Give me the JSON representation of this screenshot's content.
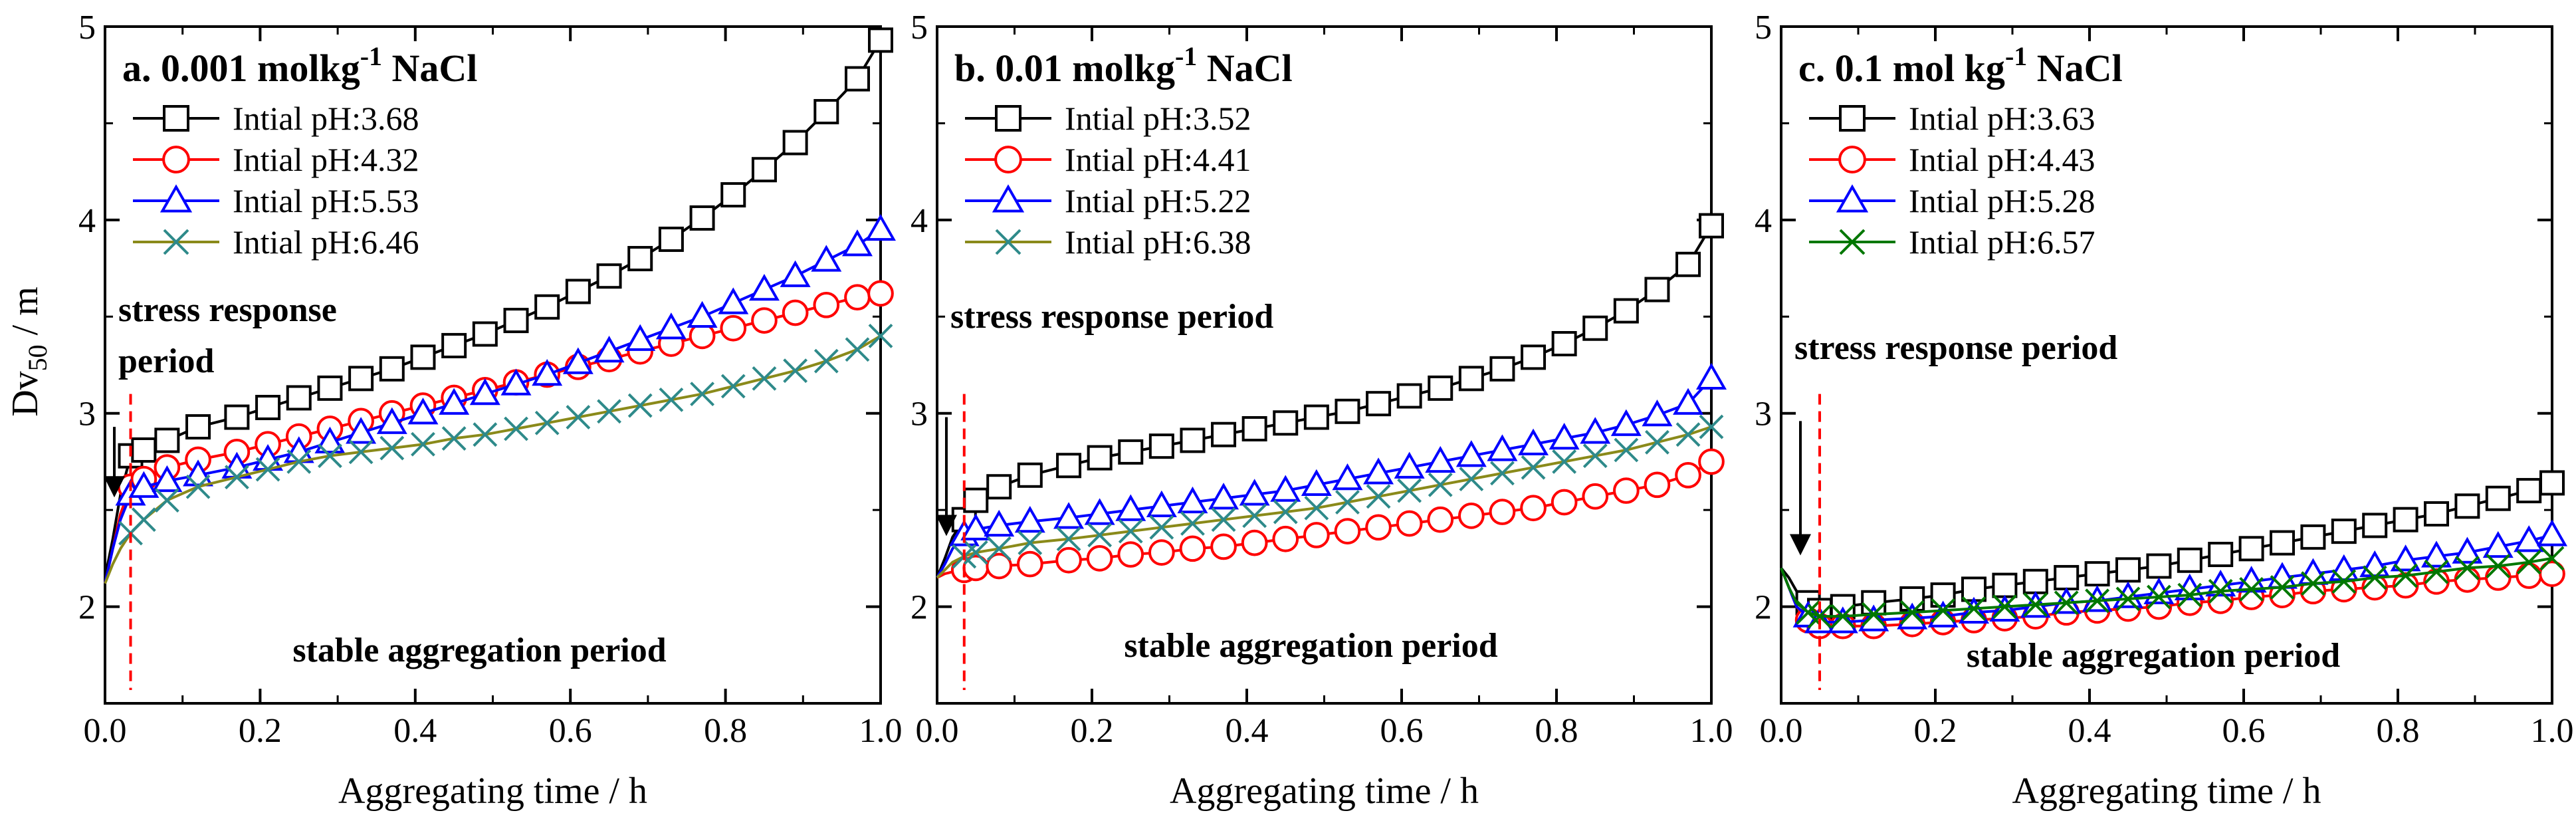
{
  "chart_data": [
    {
      "type": "line",
      "title_prefix": "a.",
      "title_value": "0.001 mol",
      "title_unit_base": "kg",
      "title_unit_exp": "-1",
      "title_salt": "NaCl",
      "xlabel": "Aggregating time / h",
      "ylabel_base": "Dv",
      "ylabel_sub": "50",
      "ylabel_unit": "/  m",
      "xlim": [
        0,
        1.0
      ],
      "ylim": [
        1.5,
        5
      ],
      "x_ticks": [
        "0.0",
        "0.2",
        "0.4",
        "0.6",
        "0.8",
        "1.0"
      ],
      "y_ticks": [
        "2",
        "3",
        "4",
        "5"
      ],
      "annotation_top": [
        "stress response",
        "period"
      ],
      "annotation_bottom": "stable aggregation period",
      "transition_x": 0.033,
      "arrow_x": 0.012,
      "arrow_y": [
        2.93,
        2.62
      ],
      "series": [
        {
          "name": "Intial pH:3.68",
          "color": "#000000",
          "marker": "square",
          "x": [
            0,
            0.01,
            0.02,
            0.033,
            0.05,
            0.08,
            0.12,
            0.17,
            0.21,
            0.25,
            0.29,
            0.33,
            0.37,
            0.41,
            0.45,
            0.49,
            0.53,
            0.57,
            0.61,
            0.65,
            0.69,
            0.73,
            0.77,
            0.81,
            0.85,
            0.89,
            0.93,
            0.97,
            1.0
          ],
          "y": [
            2.15,
            2.35,
            2.58,
            2.78,
            2.81,
            2.86,
            2.93,
            2.98,
            3.03,
            3.08,
            3.13,
            3.18,
            3.23,
            3.29,
            3.35,
            3.41,
            3.48,
            3.55,
            3.63,
            3.71,
            3.8,
            3.9,
            4.01,
            4.13,
            4.26,
            4.4,
            4.56,
            4.73,
            4.93
          ]
        },
        {
          "name": "Intial pH:4.32",
          "color": "#ff0000",
          "marker": "circle",
          "x": [
            0,
            0.01,
            0.02,
            0.033,
            0.05,
            0.08,
            0.12,
            0.17,
            0.21,
            0.25,
            0.29,
            0.33,
            0.37,
            0.41,
            0.45,
            0.49,
            0.53,
            0.57,
            0.61,
            0.65,
            0.69,
            0.73,
            0.77,
            0.81,
            0.85,
            0.89,
            0.93,
            0.97,
            1.0
          ],
          "y": [
            2.12,
            2.3,
            2.48,
            2.62,
            2.66,
            2.72,
            2.76,
            2.8,
            2.84,
            2.88,
            2.92,
            2.96,
            3.0,
            3.04,
            3.08,
            3.12,
            3.16,
            3.2,
            3.24,
            3.28,
            3.32,
            3.36,
            3.4,
            3.44,
            3.48,
            3.52,
            3.56,
            3.6,
            3.62
          ]
        },
        {
          "name": "Intial pH:5.53",
          "color": "#0000ff",
          "marker": "triangle",
          "x": [
            0,
            0.01,
            0.02,
            0.033,
            0.05,
            0.08,
            0.12,
            0.17,
            0.21,
            0.25,
            0.29,
            0.33,
            0.37,
            0.41,
            0.45,
            0.49,
            0.53,
            0.57,
            0.61,
            0.65,
            0.69,
            0.73,
            0.77,
            0.81,
            0.85,
            0.89,
            0.93,
            0.97,
            1.0
          ],
          "y": [
            2.12,
            2.3,
            2.45,
            2.58,
            2.62,
            2.65,
            2.68,
            2.72,
            2.76,
            2.8,
            2.85,
            2.9,
            2.95,
            3.0,
            3.05,
            3.1,
            3.15,
            3.2,
            3.26,
            3.32,
            3.38,
            3.44,
            3.5,
            3.57,
            3.64,
            3.71,
            3.79,
            3.87,
            3.95
          ]
        },
        {
          "name": "Intial pH:6.46",
          "color": "#8a8a1a",
          "marker": "cross",
          "marker_color": "#2e8a8a",
          "x": [
            0,
            0.01,
            0.02,
            0.033,
            0.05,
            0.08,
            0.12,
            0.17,
            0.21,
            0.25,
            0.29,
            0.33,
            0.37,
            0.41,
            0.45,
            0.49,
            0.53,
            0.57,
            0.61,
            0.65,
            0.69,
            0.73,
            0.77,
            0.81,
            0.85,
            0.89,
            0.93,
            0.97,
            1.0
          ],
          "y": [
            2.12,
            2.22,
            2.3,
            2.38,
            2.45,
            2.55,
            2.62,
            2.67,
            2.71,
            2.75,
            2.78,
            2.8,
            2.82,
            2.84,
            2.87,
            2.89,
            2.92,
            2.95,
            2.98,
            3.01,
            3.04,
            3.07,
            3.1,
            3.14,
            3.18,
            3.22,
            3.27,
            3.33,
            3.4
          ]
        }
      ]
    },
    {
      "type": "line",
      "title_prefix": "b.",
      "title_value": "0.01 mol",
      "title_unit_base": "kg",
      "title_unit_exp": "-1",
      "title_salt": "NaCl",
      "xlabel": "Aggregating time / h",
      "xlim": [
        0,
        1.0
      ],
      "ylim": [
        1.5,
        5
      ],
      "x_ticks": [
        "0.0",
        "0.2",
        "0.4",
        "0.6",
        "0.8",
        "1.0"
      ],
      "y_ticks": [
        "2",
        "3",
        "4",
        "5"
      ],
      "annotation_top": [
        "stress response period"
      ],
      "annotation_bottom": "stable aggregation period",
      "transition_x": 0.035,
      "arrow_x": 0.012,
      "arrow_y": [
        2.98,
        2.42
      ],
      "series": [
        {
          "name": "Intial pH:3.52",
          "color": "#000000",
          "marker": "square",
          "x": [
            0,
            0.01,
            0.02,
            0.035,
            0.05,
            0.08,
            0.12,
            0.17,
            0.21,
            0.25,
            0.29,
            0.33,
            0.37,
            0.41,
            0.45,
            0.49,
            0.53,
            0.57,
            0.61,
            0.65,
            0.69,
            0.73,
            0.77,
            0.81,
            0.85,
            0.89,
            0.93,
            0.97,
            1.0
          ],
          "y": [
            2.15,
            2.25,
            2.36,
            2.45,
            2.55,
            2.62,
            2.68,
            2.73,
            2.77,
            2.8,
            2.83,
            2.86,
            2.89,
            2.92,
            2.95,
            2.98,
            3.01,
            3.05,
            3.09,
            3.13,
            3.18,
            3.23,
            3.29,
            3.36,
            3.44,
            3.53,
            3.64,
            3.77,
            3.97
          ]
        },
        {
          "name": "Intial pH:4.41",
          "color": "#ff0000",
          "marker": "circle",
          "x": [
            0,
            0.01,
            0.02,
            0.035,
            0.05,
            0.08,
            0.12,
            0.17,
            0.21,
            0.25,
            0.29,
            0.33,
            0.37,
            0.41,
            0.45,
            0.49,
            0.53,
            0.57,
            0.61,
            0.65,
            0.69,
            0.73,
            0.77,
            0.81,
            0.85,
            0.89,
            0.93,
            0.97,
            1.0
          ],
          "y": [
            2.15,
            2.17,
            2.18,
            2.19,
            2.2,
            2.21,
            2.22,
            2.24,
            2.25,
            2.27,
            2.28,
            2.3,
            2.31,
            2.33,
            2.35,
            2.37,
            2.39,
            2.41,
            2.43,
            2.45,
            2.47,
            2.49,
            2.51,
            2.54,
            2.57,
            2.6,
            2.63,
            2.68,
            2.75
          ]
        },
        {
          "name": "Intial pH:5.22",
          "color": "#0000ff",
          "marker": "triangle",
          "x": [
            0,
            0.01,
            0.02,
            0.035,
            0.05,
            0.08,
            0.12,
            0.17,
            0.21,
            0.25,
            0.29,
            0.33,
            0.37,
            0.41,
            0.45,
            0.49,
            0.53,
            0.57,
            0.61,
            0.65,
            0.69,
            0.73,
            0.77,
            0.81,
            0.85,
            0.89,
            0.93,
            0.97,
            1.0
          ],
          "y": [
            2.15,
            2.22,
            2.3,
            2.37,
            2.4,
            2.42,
            2.44,
            2.46,
            2.48,
            2.5,
            2.52,
            2.54,
            2.56,
            2.58,
            2.6,
            2.63,
            2.66,
            2.69,
            2.72,
            2.75,
            2.78,
            2.81,
            2.84,
            2.87,
            2.9,
            2.94,
            2.99,
            3.05,
            3.18
          ]
        },
        {
          "name": "Intial pH:6.38",
          "color": "#8a8a1a",
          "marker": "cross",
          "marker_color": "#2e8a8a",
          "x": [
            0,
            0.01,
            0.02,
            0.035,
            0.05,
            0.08,
            0.12,
            0.17,
            0.21,
            0.25,
            0.29,
            0.33,
            0.37,
            0.41,
            0.45,
            0.49,
            0.53,
            0.57,
            0.61,
            0.65,
            0.69,
            0.73,
            0.77,
            0.81,
            0.85,
            0.89,
            0.93,
            0.97,
            1.0
          ],
          "y": [
            2.15,
            2.19,
            2.23,
            2.26,
            2.28,
            2.3,
            2.33,
            2.35,
            2.37,
            2.39,
            2.41,
            2.43,
            2.45,
            2.47,
            2.49,
            2.51,
            2.54,
            2.57,
            2.6,
            2.63,
            2.66,
            2.69,
            2.72,
            2.75,
            2.78,
            2.81,
            2.85,
            2.89,
            2.93
          ]
        }
      ]
    },
    {
      "type": "line",
      "title_prefix": "c.",
      "title_value": "0.1 mol kg",
      "title_unit_base": "",
      "title_unit_exp": "-1",
      "title_salt": "NaCl",
      "xlabel": "Aggregating time / h",
      "xlim": [
        0,
        1.0
      ],
      "ylim": [
        1.5,
        5
      ],
      "x_ticks": [
        "0.0",
        "0.2",
        "0.4",
        "0.6",
        "0.8",
        "1.0"
      ],
      "y_ticks": [
        "2",
        "3",
        "4",
        "5"
      ],
      "annotation_top": [
        "stress response period"
      ],
      "annotation_bottom": "stable aggregation period",
      "transition_x": 0.05,
      "arrow_x": 0.025,
      "arrow_y": [
        2.96,
        2.32
      ],
      "series": [
        {
          "name": "Intial pH:3.63",
          "color": "#000000",
          "marker": "square",
          "x": [
            0,
            0.01,
            0.02,
            0.035,
            0.05,
            0.08,
            0.12,
            0.17,
            0.21,
            0.25,
            0.29,
            0.33,
            0.37,
            0.41,
            0.45,
            0.49,
            0.53,
            0.57,
            0.61,
            0.65,
            0.69,
            0.73,
            0.77,
            0.81,
            0.85,
            0.89,
            0.93,
            0.97,
            1.0
          ],
          "y": [
            2.2,
            2.15,
            2.08,
            2.02,
            1.98,
            2.0,
            2.02,
            2.04,
            2.06,
            2.09,
            2.11,
            2.13,
            2.15,
            2.17,
            2.19,
            2.21,
            2.24,
            2.27,
            2.3,
            2.33,
            2.36,
            2.39,
            2.42,
            2.45,
            2.48,
            2.52,
            2.56,
            2.6,
            2.64
          ]
        },
        {
          "name": "Intial pH:4.43",
          "color": "#ff0000",
          "marker": "circle",
          "x": [
            0,
            0.01,
            0.02,
            0.035,
            0.05,
            0.08,
            0.12,
            0.17,
            0.21,
            0.25,
            0.29,
            0.33,
            0.37,
            0.41,
            0.45,
            0.49,
            0.53,
            0.57,
            0.61,
            0.65,
            0.69,
            0.73,
            0.77,
            0.81,
            0.85,
            0.89,
            0.93,
            0.97,
            1.0
          ],
          "y": [
            2.2,
            2.1,
            2.0,
            1.93,
            1.9,
            1.9,
            1.9,
            1.91,
            1.92,
            1.93,
            1.94,
            1.95,
            1.97,
            1.98,
            1.99,
            2.0,
            2.02,
            2.03,
            2.05,
            2.06,
            2.08,
            2.09,
            2.1,
            2.11,
            2.13,
            2.14,
            2.15,
            2.16,
            2.17
          ]
        },
        {
          "name": "Intial pH:5.28",
          "color": "#0000ff",
          "marker": "triangle",
          "x": [
            0,
            0.01,
            0.02,
            0.035,
            0.05,
            0.08,
            0.12,
            0.17,
            0.21,
            0.25,
            0.29,
            0.33,
            0.37,
            0.41,
            0.45,
            0.49,
            0.53,
            0.57,
            0.61,
            0.65,
            0.69,
            0.73,
            0.77,
            0.81,
            0.85,
            0.89,
            0.93,
            0.97,
            1.0
          ],
          "y": [
            2.2,
            2.1,
            2.0,
            1.95,
            1.92,
            1.92,
            1.93,
            1.94,
            1.95,
            1.97,
            1.98,
            2.0,
            2.02,
            2.03,
            2.05,
            2.07,
            2.09,
            2.11,
            2.13,
            2.15,
            2.17,
            2.19,
            2.21,
            2.24,
            2.26,
            2.28,
            2.31,
            2.34,
            2.37
          ]
        },
        {
          "name": "Intial pH:6.57",
          "color": "#007700",
          "marker": "cross",
          "x": [
            0,
            0.01,
            0.02,
            0.035,
            0.05,
            0.08,
            0.12,
            0.17,
            0.21,
            0.25,
            0.29,
            0.33,
            0.37,
            0.41,
            0.45,
            0.49,
            0.53,
            0.57,
            0.61,
            0.65,
            0.69,
            0.73,
            0.77,
            0.81,
            0.85,
            0.89,
            0.93,
            0.97,
            1.0
          ],
          "y": [
            2.2,
            2.1,
            2.02,
            1.97,
            1.95,
            1.95,
            1.96,
            1.97,
            1.98,
            1.99,
            2.0,
            2.01,
            2.02,
            2.03,
            2.04,
            2.05,
            2.06,
            2.08,
            2.09,
            2.1,
            2.12,
            2.13,
            2.15,
            2.16,
            2.18,
            2.2,
            2.21,
            2.23,
            2.25
          ]
        }
      ]
    }
  ]
}
